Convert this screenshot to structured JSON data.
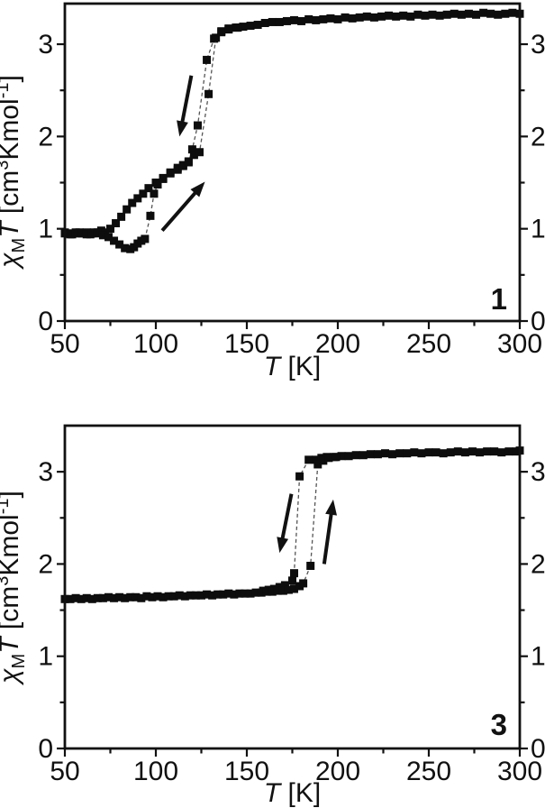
{
  "figure": {
    "colors": {
      "background": "#ffffff",
      "axis": "#111111",
      "marker": "#0d0d0d",
      "line": "#555555"
    }
  },
  "chart_data": [
    {
      "type": "scatter",
      "panel_label": "1",
      "title": "",
      "x_axis": {
        "min": 50,
        "max": 300,
        "major_ticks": [
          50,
          100,
          150,
          200,
          250,
          300
        ],
        "minor_ticks": [
          75,
          125,
          175,
          225,
          275
        ],
        "label_text": "T [K]",
        "label_parts": [
          {
            "t": "T",
            "italic": true
          },
          {
            "t": " [K]"
          }
        ]
      },
      "y_axis": {
        "min": 0,
        "max": 3.44,
        "major_ticks": [
          0,
          1,
          2,
          3
        ],
        "minor_ticks": [
          0.5,
          1.5,
          2.5
        ],
        "label_text": "χMT [cm3Kmol-1]",
        "label_parts": [
          {
            "t": "χ",
            "italic": true
          },
          {
            "t": "M",
            "script": "sub"
          },
          {
            "t": "T",
            "italic": true
          },
          {
            "t": " [cm"
          },
          {
            "t": "3",
            "script": "sup"
          },
          {
            "t": "Kmol"
          },
          {
            "t": "-1",
            "script": "sup"
          },
          {
            "t": "]"
          }
        ]
      },
      "series": [
        {
          "name": "cooling",
          "points": [
            [
              50,
              0.96
            ],
            [
              52,
              0.95
            ],
            [
              54,
              0.94
            ],
            [
              56,
              0.95
            ],
            [
              58,
              0.96
            ],
            [
              60,
              0.95
            ],
            [
              62,
              0.96
            ],
            [
              64,
              0.94
            ],
            [
              66,
              0.96
            ],
            [
              68,
              0.95
            ],
            [
              70,
              0.98
            ],
            [
              72,
              0.96
            ],
            [
              75,
              1.0
            ],
            [
              78,
              1.06
            ],
            [
              81,
              1.13
            ],
            [
              84,
              1.21
            ],
            [
              87,
              1.28
            ],
            [
              90,
              1.33
            ],
            [
              93,
              1.38
            ],
            [
              96,
              1.44
            ],
            [
              100,
              1.5
            ],
            [
              104,
              1.55
            ],
            [
              108,
              1.6
            ],
            [
              112,
              1.64
            ],
            [
              115,
              1.68
            ],
            [
              118,
              1.72
            ],
            [
              120,
              1.86
            ],
            [
              123,
              2.12
            ],
            [
              128,
              2.83
            ],
            [
              132,
              3.06
            ],
            [
              136,
              3.14
            ],
            [
              140,
              3.17
            ],
            [
              144,
              3.18
            ],
            [
              148,
              3.19
            ],
            [
              152,
              3.2
            ],
            [
              156,
              3.21
            ],
            [
              160,
              3.23
            ],
            [
              164,
              3.24
            ],
            [
              168,
              3.24
            ],
            [
              172,
              3.25
            ],
            [
              176,
              3.26
            ],
            [
              180,
              3.25
            ],
            [
              184,
              3.27
            ],
            [
              188,
              3.26
            ],
            [
              192,
              3.27
            ],
            [
              196,
              3.28
            ],
            [
              200,
              3.27
            ],
            [
              204,
              3.29
            ],
            [
              208,
              3.28
            ],
            [
              212,
              3.29
            ],
            [
              216,
              3.3
            ],
            [
              220,
              3.29
            ],
            [
              224,
              3.3
            ],
            [
              228,
              3.31
            ],
            [
              232,
              3.3
            ],
            [
              236,
              3.31
            ],
            [
              240,
              3.3
            ],
            [
              244,
              3.32
            ],
            [
              248,
              3.31
            ],
            [
              252,
              3.32
            ],
            [
              256,
              3.31
            ],
            [
              260,
              3.32
            ],
            [
              264,
              3.33
            ],
            [
              268,
              3.32
            ],
            [
              272,
              3.33
            ],
            [
              276,
              3.32
            ],
            [
              280,
              3.34
            ],
            [
              284,
              3.33
            ],
            [
              288,
              3.32
            ],
            [
              292,
              3.33
            ],
            [
              296,
              3.34
            ],
            [
              300,
              3.33
            ]
          ]
        },
        {
          "name": "heating",
          "points": [
            [
              50,
              0.95
            ],
            [
              53,
              0.94
            ],
            [
              56,
              0.96
            ],
            [
              59,
              0.95
            ],
            [
              62,
              0.94
            ],
            [
              65,
              0.95
            ],
            [
              68,
              0.96
            ],
            [
              71,
              0.93
            ],
            [
              74,
              0.91
            ],
            [
              77,
              0.87
            ],
            [
              80,
              0.83
            ],
            [
              83,
              0.79
            ],
            [
              86,
              0.78
            ],
            [
              88,
              0.8
            ],
            [
              90,
              0.84
            ],
            [
              92,
              0.87
            ],
            [
              94,
              0.89
            ],
            [
              97,
              1.14
            ],
            [
              99,
              1.38
            ],
            [
              101,
              1.48
            ],
            [
              104,
              1.54
            ],
            [
              108,
              1.61
            ],
            [
              112,
              1.66
            ],
            [
              115,
              1.69
            ],
            [
              118,
              1.73
            ],
            [
              121,
              1.8
            ],
            [
              124,
              1.83
            ],
            [
              129,
              2.46
            ],
            [
              133,
              3.07
            ],
            [
              136,
              3.13
            ],
            [
              140,
              3.16
            ],
            [
              145,
              3.18
            ]
          ]
        }
      ],
      "arrows": [
        {
          "direction": "cooling-down",
          "from": [
            119.5,
            2.66
          ],
          "to": [
            113,
            2.0
          ]
        },
        {
          "direction": "heating-up",
          "from": [
            103.5,
            0.98
          ],
          "to": [
            127,
            1.51
          ]
        }
      ]
    },
    {
      "type": "scatter",
      "panel_label": "3",
      "title": "",
      "x_axis": {
        "min": 50,
        "max": 300,
        "major_ticks": [
          50,
          100,
          150,
          200,
          250,
          300
        ],
        "minor_ticks": [
          75,
          125,
          175,
          225,
          275
        ],
        "label_text": "T [K]",
        "label_parts": [
          {
            "t": "T",
            "italic": true
          },
          {
            "t": " [K]"
          }
        ]
      },
      "y_axis": {
        "min": 0,
        "max": 3.5,
        "major_ticks": [
          0,
          1,
          2,
          3
        ],
        "minor_ticks": [
          0.5,
          1.5,
          2.5
        ],
        "label_text": "χMT [cm3Kmol-1]",
        "label_parts": [
          {
            "t": "χ",
            "italic": true
          },
          {
            "t": "M",
            "script": "sub"
          },
          {
            "t": "T",
            "italic": true
          },
          {
            "t": " [cm"
          },
          {
            "t": "3",
            "script": "sup"
          },
          {
            "t": "Kmol"
          },
          {
            "t": "-1",
            "script": "sup"
          },
          {
            "t": "]"
          }
        ]
      },
      "series": [
        {
          "name": "cooling",
          "points": [
            [
              159,
              1.71
            ],
            [
              162,
              1.72
            ],
            [
              165,
              1.73
            ],
            [
              168,
              1.75
            ],
            [
              171,
              1.77
            ],
            [
              175,
              1.82
            ],
            [
              176,
              1.9
            ],
            [
              179,
              2.95
            ],
            [
              184,
              3.13
            ],
            [
              188,
              3.13
            ],
            [
              191,
              3.15
            ],
            [
              194,
              3.16
            ],
            [
              198,
              3.16
            ],
            [
              202,
              3.17
            ],
            [
              206,
              3.17
            ],
            [
              210,
              3.18
            ],
            [
              214,
              3.18
            ],
            [
              218,
              3.19
            ],
            [
              222,
              3.19
            ],
            [
              226,
              3.2
            ],
            [
              230,
              3.19
            ],
            [
              234,
              3.2
            ],
            [
              238,
              3.2
            ],
            [
              242,
              3.21
            ],
            [
              246,
              3.2
            ],
            [
              250,
              3.21
            ],
            [
              254,
              3.21
            ],
            [
              258,
              3.2
            ],
            [
              262,
              3.21
            ],
            [
              266,
              3.22
            ],
            [
              270,
              3.21
            ],
            [
              274,
              3.22
            ],
            [
              278,
              3.21
            ],
            [
              282,
              3.22
            ],
            [
              286,
              3.22
            ],
            [
              290,
              3.21
            ],
            [
              294,
              3.22
            ],
            [
              298,
              3.22
            ],
            [
              300,
              3.23
            ]
          ]
        },
        {
          "name": "heating",
          "points": [
            [
              50,
              1.62
            ],
            [
              53,
              1.62
            ],
            [
              56,
              1.63
            ],
            [
              59,
              1.62
            ],
            [
              62,
              1.63
            ],
            [
              65,
              1.62
            ],
            [
              68,
              1.63
            ],
            [
              71,
              1.63
            ],
            [
              74,
              1.64
            ],
            [
              77,
              1.63
            ],
            [
              80,
              1.64
            ],
            [
              83,
              1.63
            ],
            [
              86,
              1.64
            ],
            [
              89,
              1.64
            ],
            [
              92,
              1.63
            ],
            [
              95,
              1.65
            ],
            [
              98,
              1.64
            ],
            [
              101,
              1.65
            ],
            [
              104,
              1.64
            ],
            [
              107,
              1.65
            ],
            [
              110,
              1.65
            ],
            [
              113,
              1.66
            ],
            [
              116,
              1.65
            ],
            [
              119,
              1.66
            ],
            [
              122,
              1.66
            ],
            [
              125,
              1.66
            ],
            [
              128,
              1.67
            ],
            [
              131,
              1.66
            ],
            [
              134,
              1.67
            ],
            [
              137,
              1.67
            ],
            [
              140,
              1.68
            ],
            [
              143,
              1.67
            ],
            [
              146,
              1.68
            ],
            [
              149,
              1.68
            ],
            [
              152,
              1.68
            ],
            [
              155,
              1.69
            ],
            [
              158,
              1.69
            ],
            [
              161,
              1.7
            ],
            [
              164,
              1.7
            ],
            [
              167,
              1.71
            ],
            [
              170,
              1.71
            ],
            [
              173,
              1.72
            ],
            [
              176,
              1.73
            ],
            [
              179,
              1.76
            ],
            [
              181,
              1.79
            ],
            [
              185,
              1.98
            ],
            [
              189,
              3.08
            ],
            [
              192,
              3.12
            ],
            [
              195,
              3.15
            ],
            [
              199,
              3.16
            ]
          ]
        }
      ],
      "arrows": [
        {
          "direction": "cooling-down",
          "from": [
            174.5,
            2.76
          ],
          "to": [
            168,
            2.12
          ]
        },
        {
          "direction": "heating-up",
          "from": [
            192.5,
            2.0
          ],
          "to": [
            197.5,
            2.7
          ]
        }
      ]
    }
  ]
}
